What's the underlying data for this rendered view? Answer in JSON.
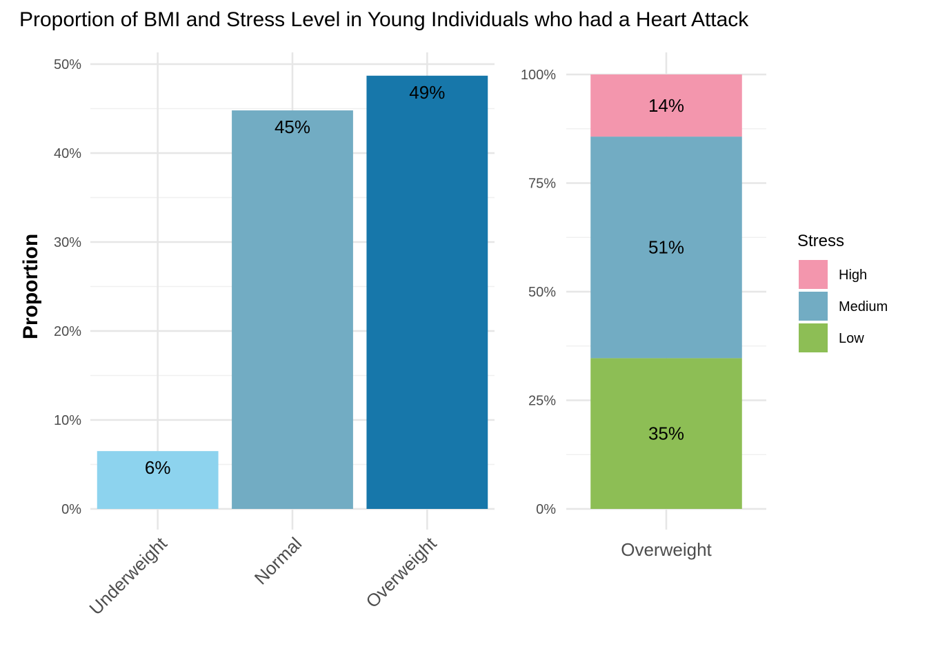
{
  "chart_data": [
    {
      "type": "bar",
      "title": "Proportion of BMI and Stress Level in Young Individuals who had a Heart Attack",
      "ylabel": "Proportion",
      "xlabel": "",
      "categories": [
        "Underweight",
        "Normal",
        "Overweight"
      ],
      "values": [
        0.065,
        0.448,
        0.487
      ],
      "data_labels": [
        "6%",
        "45%",
        "49%"
      ],
      "colors": [
        "#8DD3EE",
        "#72ACC3",
        "#1777AA"
      ],
      "ylim": [
        0,
        0.5
      ],
      "yticks": [
        0,
        0.1,
        0.2,
        0.3,
        0.4,
        0.5
      ],
      "ytick_labels": [
        "0%",
        "10%",
        "20%",
        "30%",
        "40%",
        "50%"
      ],
      "grid": true
    },
    {
      "type": "bar",
      "stacked": true,
      "categories": [
        "Overweight"
      ],
      "series": [
        {
          "name": "Low",
          "values": [
            0.347
          ],
          "label": "35%",
          "color": "#8DBE55"
        },
        {
          "name": "Medium",
          "values": [
            0.51
          ],
          "label": "51%",
          "color": "#72ACC3"
        },
        {
          "name": "High",
          "values": [
            0.143
          ],
          "label": "14%",
          "color": "#F396AD"
        }
      ],
      "ylim": [
        0,
        1
      ],
      "yticks": [
        0,
        0.25,
        0.5,
        0.75,
        1
      ],
      "ytick_labels": [
        "0%",
        "25%",
        "50%",
        "75%",
        "100%"
      ],
      "legend": {
        "title": "Stress",
        "order": [
          "High",
          "Medium",
          "Low"
        ],
        "placement": "right"
      },
      "grid": true
    }
  ]
}
